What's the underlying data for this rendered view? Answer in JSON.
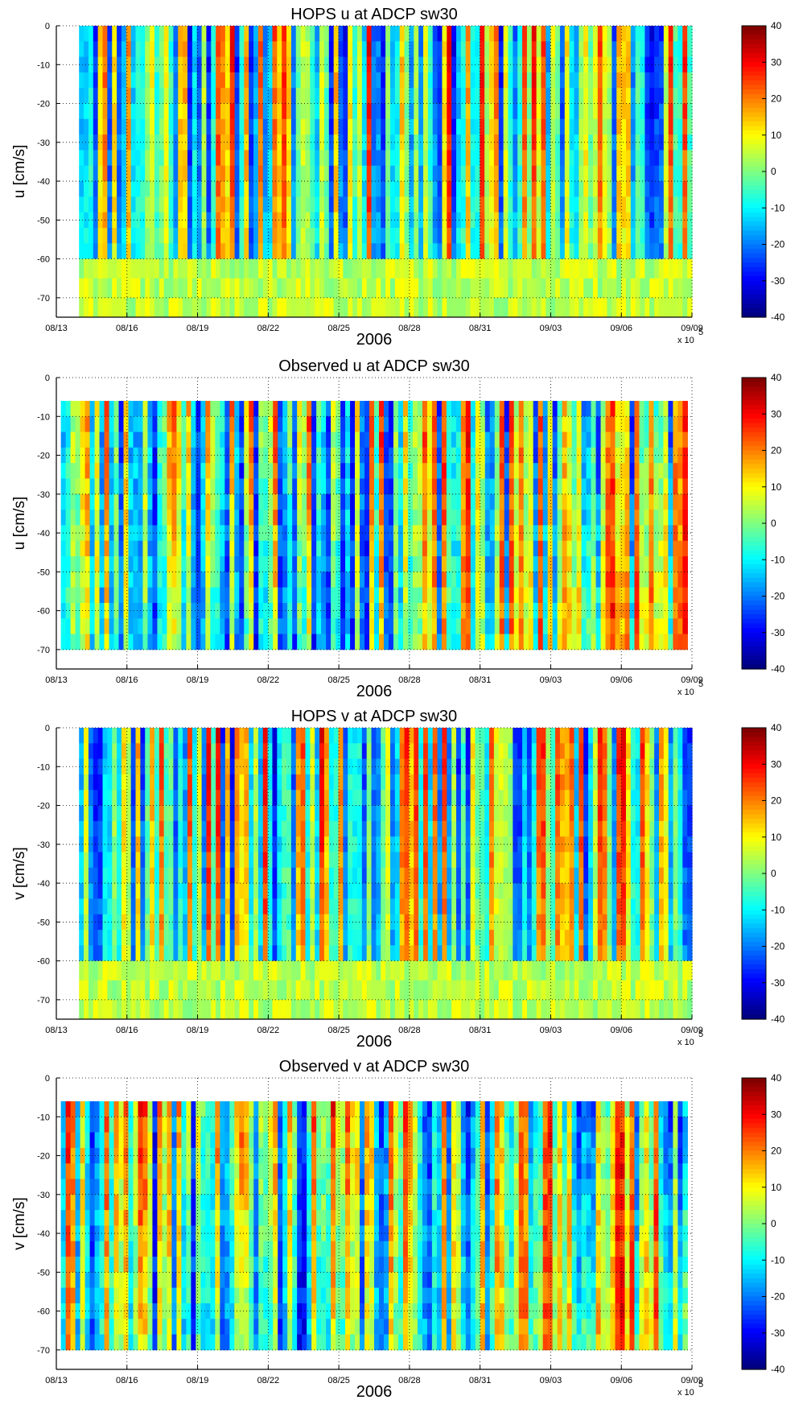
{
  "chart_data": [
    {
      "type": "heatmap",
      "title": "HOPS u at ADCP sw30",
      "ylabel": "u [cm/s]",
      "xlabel": "2006",
      "x_exponent": "x 10",
      "x_exponent_power": "5",
      "x_tick_labels": [
        "08/13",
        "08/16",
        "08/19",
        "08/22",
        "08/25",
        "08/28",
        "08/31",
        "09/03",
        "09/06",
        "09/09"
      ],
      "x_range_days": [
        0,
        28
      ],
      "y_ticks": [
        0,
        -10,
        -20,
        -30,
        -40,
        -50,
        -60,
        -70
      ],
      "y_tick_labels": [
        "0",
        "-10",
        "-20",
        "-30",
        "-40",
        "-50",
        "-60",
        "-70"
      ],
      "ylim": [
        -75,
        0
      ],
      "data_x_range_days": [
        1.0,
        28
      ],
      "data_depth_range": [
        -75,
        0
      ],
      "colorbar": {
        "min": -40,
        "max": 40,
        "ticks": [
          40,
          30,
          20,
          10,
          0,
          -10,
          -20,
          -30,
          -40
        ],
        "tick_labels": [
          "40",
          "30",
          "20",
          "10",
          "0",
          "-10",
          "-20",
          "-30",
          "-40"
        ]
      },
      "grid": true,
      "pattern": "model",
      "seed": 11
    },
    {
      "type": "heatmap",
      "title": "Observed u at ADCP sw30",
      "ylabel": "u [cm/s]",
      "xlabel": "2006",
      "x_exponent": "x 10",
      "x_exponent_power": "5",
      "x_tick_labels": [
        "08/13",
        "08/16",
        "08/19",
        "08/22",
        "08/25",
        "08/28",
        "08/31",
        "09/03",
        "09/06",
        "09/09"
      ],
      "x_range_days": [
        0,
        28
      ],
      "y_ticks": [
        0,
        -10,
        -20,
        -30,
        -40,
        -50,
        -60,
        -70
      ],
      "y_tick_labels": [
        "0",
        "-10",
        "-20",
        "-30",
        "-40",
        "-50",
        "-60",
        "-70"
      ],
      "ylim": [
        -75,
        0
      ],
      "data_x_range_days": [
        0.2,
        27.8
      ],
      "data_depth_range": [
        -70,
        -6
      ],
      "colorbar": {
        "min": -40,
        "max": 40,
        "ticks": [
          40,
          30,
          20,
          10,
          0,
          -10,
          -20,
          -30,
          -40
        ],
        "tick_labels": [
          "40",
          "30",
          "20",
          "10",
          "0",
          "-10",
          "-20",
          "-30",
          "-40"
        ]
      },
      "grid": true,
      "pattern": "obs",
      "seed": 23
    },
    {
      "type": "heatmap",
      "title": "HOPS v at ADCP sw30",
      "ylabel": "v [cm/s]",
      "xlabel": "2006",
      "x_exponent": "x 10",
      "x_exponent_power": "5",
      "x_tick_labels": [
        "08/13",
        "08/16",
        "08/19",
        "08/22",
        "08/25",
        "08/28",
        "08/31",
        "09/03",
        "09/06",
        "09/09"
      ],
      "x_range_days": [
        0,
        28
      ],
      "y_ticks": [
        0,
        -10,
        -20,
        -30,
        -40,
        -50,
        -60,
        -70
      ],
      "y_tick_labels": [
        "0",
        "-10",
        "-20",
        "-30",
        "-40",
        "-50",
        "-60",
        "-70"
      ],
      "ylim": [
        -75,
        0
      ],
      "data_x_range_days": [
        1.0,
        28
      ],
      "data_depth_range": [
        -75,
        0
      ],
      "colorbar": {
        "min": -40,
        "max": 40,
        "ticks": [
          40,
          30,
          20,
          10,
          0,
          -10,
          -20,
          -30,
          -40
        ],
        "tick_labels": [
          "40",
          "30",
          "20",
          "10",
          "0",
          "-10",
          "-20",
          "-30",
          "-40"
        ]
      },
      "grid": true,
      "pattern": "model",
      "seed": 37
    },
    {
      "type": "heatmap",
      "title": "Observed v at ADCP sw30",
      "ylabel": "v [cm/s]",
      "xlabel": "2006",
      "x_exponent": "x 10",
      "x_exponent_power": "5",
      "x_tick_labels": [
        "08/13",
        "08/16",
        "08/19",
        "08/22",
        "08/25",
        "08/28",
        "08/31",
        "09/03",
        "09/06",
        "09/09"
      ],
      "x_range_days": [
        0,
        28
      ],
      "y_ticks": [
        0,
        -10,
        -20,
        -30,
        -40,
        -50,
        -60,
        -70
      ],
      "y_tick_labels": [
        "0",
        "-10",
        "-20",
        "-30",
        "-40",
        "-50",
        "-60",
        "-70"
      ],
      "ylim": [
        -75,
        0
      ],
      "data_x_range_days": [
        0.2,
        27.8
      ],
      "data_depth_range": [
        -70,
        -6
      ],
      "colorbar": {
        "min": -40,
        "max": 40,
        "ticks": [
          40,
          30,
          20,
          10,
          0,
          -10,
          -20,
          -30,
          -40
        ],
        "tick_labels": [
          "40",
          "30",
          "20",
          "10",
          "0",
          "-10",
          "-20",
          "-30",
          "-40"
        ]
      },
      "grid": true,
      "pattern": "obs",
      "seed": 41
    }
  ]
}
